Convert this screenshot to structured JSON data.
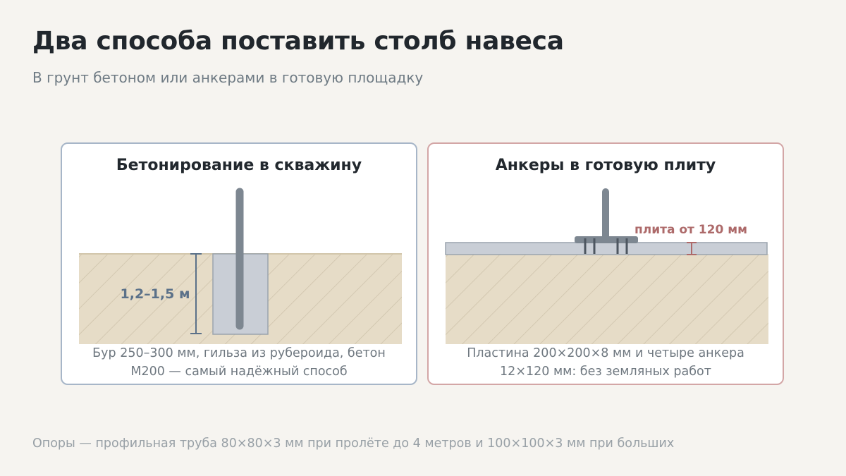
{
  "title": "Два способа поставить столб навеса",
  "subtitle": "В грунт бетоном или анкерами в готовую площадку",
  "left_card": {
    "title": "Бетонирование в скважину",
    "dimension_label": "1,2–1,5 м",
    "caption_line1": "Бур 250–300 мм, гильза из рубероида, бетон",
    "caption_line2": "М200 — самый надёжный способ",
    "accent_color": "#5b7189"
  },
  "right_card": {
    "title": "Анкеры в готовую плиту",
    "dimension_label": "плита от 120 мм",
    "caption_line1": "Пластина 200×200×8 мм и четыре анкера",
    "caption_line2": "12×120 мм: без земляных работ",
    "accent_color": "#ad6a6a"
  },
  "footer": "Опоры — профильная труба 80×80×3 мм при пролёте до 4 метров и 100×100×3 мм при больших",
  "colors": {
    "soil": "#e6dcc7",
    "soil_hatch": "#cfc4ac",
    "concrete": "#c9ced6",
    "post": "#7d8791",
    "left_border": "#a7b6c8",
    "right_border": "#d3a6a6"
  }
}
